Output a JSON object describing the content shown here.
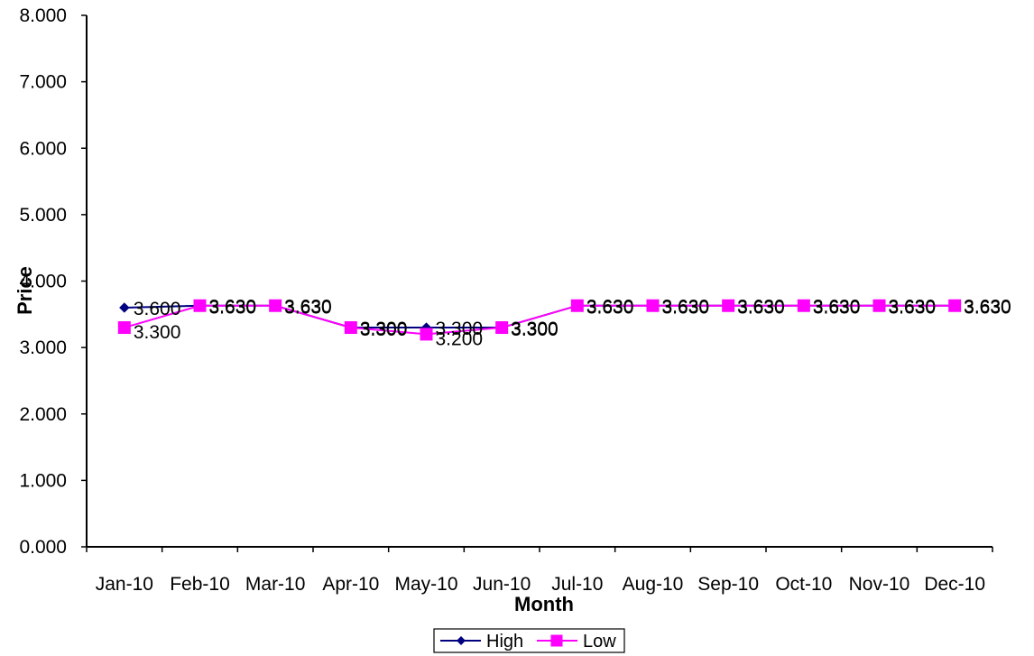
{
  "chart_data": {
    "type": "line",
    "title": "",
    "xlabel": "Month",
    "ylabel": "Price",
    "categories": [
      "Jan-10",
      "Feb-10",
      "Mar-10",
      "Apr-10",
      "May-10",
      "Jun-10",
      "Jul-10",
      "Aug-10",
      "Sep-10",
      "Oct-10",
      "Nov-10",
      "Dec-10"
    ],
    "ylim": [
      0,
      8
    ],
    "yticks": [
      "0.000",
      "1.000",
      "2.000",
      "3.000",
      "4.000",
      "5.000",
      "6.000",
      "7.000",
      "8.000"
    ],
    "grid": false,
    "legend_position": "bottom",
    "series": [
      {
        "name": "High",
        "color": "#000080",
        "marker": "diamond",
        "values": [
          3.6,
          3.63,
          3.63,
          3.3,
          3.3,
          3.3,
          3.63,
          3.63,
          3.63,
          3.63,
          3.63,
          3.63
        ],
        "labels": [
          "3.600",
          "3.630",
          "3.630",
          "3.300",
          "3.300",
          "3.300",
          "3.630",
          "3.630",
          "3.630",
          "3.630",
          "3.630",
          "3.630"
        ]
      },
      {
        "name": "Low",
        "color": "#FF00FF",
        "marker": "square",
        "values": [
          3.3,
          3.63,
          3.63,
          3.3,
          3.2,
          3.3,
          3.63,
          3.63,
          3.63,
          3.63,
          3.63,
          3.63
        ],
        "labels": [
          "3.300",
          "3.630",
          "3.630",
          "3.300",
          "3.200",
          "3.300",
          "3.630",
          "3.630",
          "3.630",
          "3.630",
          "3.630",
          "3.630"
        ]
      }
    ]
  }
}
